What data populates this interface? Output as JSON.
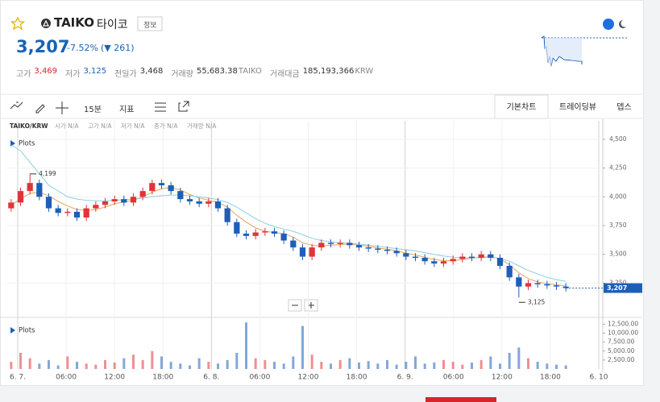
{
  "header": {
    "symbol": "TAIKO",
    "name": "타이코",
    "info_button": "정보",
    "price": "3,207",
    "change": "-7.52%",
    "change_abs": "(▼ 261)",
    "stats": [
      {
        "label": "고가",
        "value": "3,469"
      },
      {
        "label": "저가",
        "value": "3,125"
      },
      {
        "label": "전일가",
        "value": "3,468"
      },
      {
        "label": "거래량",
        "value": "55,683.38",
        "unit": "TAIKO"
      },
      {
        "label": "거래대금",
        "value": "185,193,366",
        "unit": "KRW"
      }
    ]
  },
  "toolbar": {
    "interval": "15분",
    "indicators": "지표",
    "tabs": [
      "기본차트",
      "트레이딩뷰",
      "뎁스"
    ]
  },
  "chart_data": {
    "type": "candlestick",
    "pair": "TAIKO/KRW",
    "legend_items": [
      "시가 N/A",
      "고가 N/A",
      "저가 N/A",
      "종가 N/A",
      "거래량 N/A"
    ],
    "plots_label": "Plots",
    "up_color": "#e2333a",
    "down_color": "#1d5fb8",
    "ylim": [
      2980,
      4660
    ],
    "yticks": [
      {
        "value": 3250,
        "label": "3,250"
      },
      {
        "value": 3500,
        "label": "3,500"
      },
      {
        "value": 3750,
        "label": "3,750"
      },
      {
        "value": 4000,
        "label": "4,000"
      },
      {
        "value": 4250,
        "label": "4,250"
      },
      {
        "value": 4500,
        "label": "4,500"
      }
    ],
    "xticks": [
      "6. 7.",
      "06:00",
      "12:00",
      "18:00",
      "6. 8.",
      "06:00",
      "12:00",
      "18:00",
      "6. 9.",
      "06:00",
      "12:00",
      "18:00",
      "6. 10"
    ],
    "open": [
      3900,
      3950,
      4050,
      4120,
      4000,
      3900,
      3860,
      3870,
      3820,
      3900,
      3930,
      3960,
      3980,
      3950,
      4000,
      4050,
      4120,
      4100,
      4050,
      3980,
      3960,
      3940,
      3960,
      3900,
      3780,
      3680,
      3660,
      3690,
      3700,
      3680,
      3620,
      3560,
      3480,
      3560,
      3600,
      3590,
      3600,
      3580,
      3560,
      3550,
      3540,
      3530,
      3510,
      3480,
      3470,
      3440,
      3420,
      3440,
      3460,
      3480,
      3470,
      3500,
      3470,
      3400,
      3300,
      3220,
      3250,
      3240,
      3230,
      3220
    ],
    "high": [
      3980,
      4080,
      4199,
      4150,
      4030,
      3930,
      3900,
      3900,
      3930,
      3960,
      3990,
      4010,
      4010,
      4030,
      4080,
      4150,
      4150,
      4130,
      4080,
      4010,
      3990,
      3990,
      3990,
      3930,
      3810,
      3710,
      3720,
      3730,
      3730,
      3710,
      3650,
      3590,
      3590,
      3630,
      3630,
      3630,
      3630,
      3610,
      3590,
      3580,
      3570,
      3560,
      3540,
      3510,
      3500,
      3470,
      3470,
      3490,
      3510,
      3510,
      3530,
      3530,
      3500,
      3430,
      3330,
      3280,
      3280,
      3270,
      3260,
      3250
    ],
    "low": [
      3870,
      3920,
      4020,
      3970,
      3870,
      3830,
      3830,
      3790,
      3790,
      3870,
      3900,
      3930,
      3920,
      3920,
      3970,
      4020,
      4070,
      4020,
      3950,
      3930,
      3910,
      3910,
      3870,
      3750,
      3650,
      3630,
      3630,
      3660,
      3650,
      3590,
      3530,
      3450,
      3450,
      3530,
      3560,
      3560,
      3550,
      3530,
      3520,
      3510,
      3500,
      3480,
      3450,
      3440,
      3410,
      3390,
      3390,
      3410,
      3430,
      3440,
      3440,
      3440,
      3370,
      3270,
      3125,
      3190,
      3210,
      3200,
      3190,
      3177
    ],
    "close": [
      3950,
      4050,
      4120,
      4000,
      3900,
      3860,
      3870,
      3820,
      3900,
      3930,
      3960,
      3980,
      3950,
      4000,
      4050,
      4120,
      4100,
      4050,
      3980,
      3960,
      3940,
      3960,
      3900,
      3780,
      3680,
      3660,
      3690,
      3700,
      3680,
      3620,
      3560,
      3480,
      3560,
      3600,
      3590,
      3600,
      3580,
      3560,
      3550,
      3540,
      3530,
      3510,
      3480,
      3470,
      3440,
      3420,
      3440,
      3460,
      3480,
      3470,
      3500,
      3470,
      3400,
      3300,
      3220,
      3250,
      3240,
      3230,
      3220,
      3207
    ],
    "ma_lines": [
      {
        "color": "#e8a45a",
        "values": [
          3930,
          3980,
          4030,
          4040,
          4010,
          3960,
          3920,
          3890,
          3880,
          3890,
          3910,
          3940,
          3955,
          3970,
          4000,
          4040,
          4070,
          4080,
          4060,
          4020,
          3990,
          3970,
          3950,
          3910,
          3840,
          3780,
          3730,
          3700,
          3690,
          3680,
          3650,
          3600,
          3580,
          3570,
          3580,
          3585,
          3590,
          3580,
          3570,
          3555,
          3545,
          3530,
          3510,
          3495,
          3475,
          3455,
          3445,
          3445,
          3455,
          3465,
          3475,
          3480,
          3460,
          3410,
          3340,
          3290,
          3260,
          3245,
          3235,
          3225
        ]
      },
      {
        "color": "#8ccfe0",
        "values": [
          4450,
          4400,
          4300,
          4200,
          4100,
          4050,
          4000,
          3980,
          3970,
          3965,
          3965,
          3970,
          3975,
          3980,
          3990,
          4000,
          4010,
          4015,
          4015,
          4010,
          4000,
          3990,
          3975,
          3950,
          3910,
          3860,
          3810,
          3770,
          3740,
          3720,
          3700,
          3670,
          3640,
          3620,
          3610,
          3600,
          3595,
          3590,
          3580,
          3570,
          3560,
          3550,
          3540,
          3530,
          3515,
          3500,
          3485,
          3475,
          3470,
          3470,
          3470,
          3475,
          3465,
          3440,
          3400,
          3360,
          3330,
          3300,
          3280,
          3265
        ]
      }
    ],
    "last_price": {
      "value": 3207,
      "label": "3,207"
    },
    "annotations": [
      {
        "value": 4199,
        "label": "4,199"
      },
      {
        "value": 3125,
        "label": "3,125"
      }
    ],
    "volume": {
      "values": [
        2000,
        4500,
        3000,
        1500,
        2500,
        1000,
        3500,
        2000,
        1500,
        1200,
        2500,
        1800,
        3000,
        4000,
        2500,
        5000,
        3500,
        2000,
        1500,
        1000,
        3000,
        2000,
        1500,
        2500,
        4500,
        13000,
        3000,
        2500,
        2000,
        1500,
        3500,
        12000,
        4000,
        2000,
        1500,
        2500,
        3000,
        1800,
        2200,
        1500,
        2500,
        1200,
        2000,
        3500,
        1500,
        1800,
        2500,
        2000,
        1200,
        1800,
        2500,
        3500,
        1500,
        4500,
        6000,
        3000,
        2000,
        1500,
        1200,
        1000
      ],
      "ylim": [
        0,
        13500
      ],
      "yticks": [
        {
          "value": 2500,
          "label": "2,500.00"
        },
        {
          "value": 5000,
          "label": "5,000.00"
        },
        {
          "value": 7500,
          "label": "7,500.00"
        },
        {
          "value": 10000,
          "label": "10,000.00"
        },
        {
          "value": 12500,
          "label": "12,500.00"
        }
      ]
    }
  }
}
